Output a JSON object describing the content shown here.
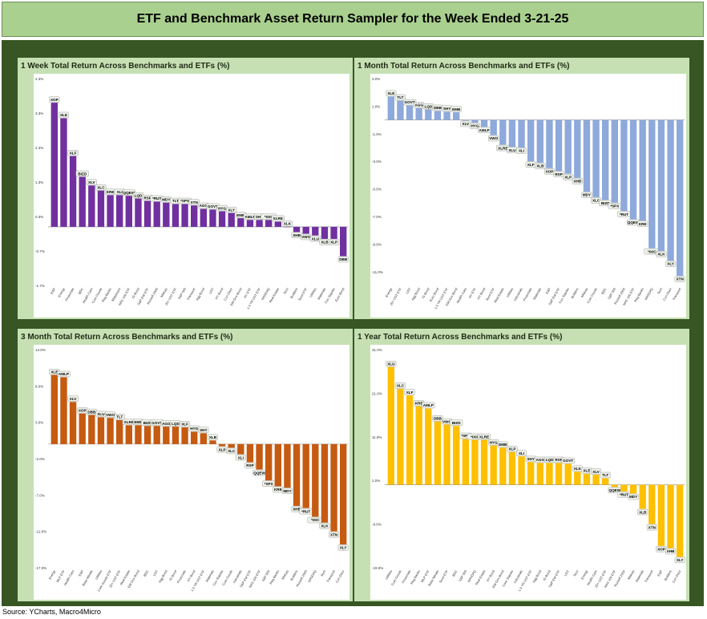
{
  "page": {
    "title": "ETF and Benchmark Asset Return Sampler for the Week Ended 3-21-25",
    "source": "Source: YCharts, Macro4Micro"
  },
  "chart_data": [
    {
      "type": "bar",
      "title": "1 Week Total Return Across Benchmarks and ETFs (%)",
      "color": "#7030a0",
      "ylim": [
        -1.7,
        4.3
      ],
      "yticks": [
        4.3,
        3.3,
        2.3,
        1.3,
        0.3,
        -0.7,
        -1.7
      ],
      "ytick_labels": [
        "4.3%",
        "3.3%",
        "2.3%",
        "1.3%",
        "0.3%",
        "-0.7%",
        "-1.7%"
      ],
      "categories": [
        "E&P",
        "Energy",
        "Financials",
        "BDC",
        "Health Care",
        "Core Goods",
        "Reg Banks",
        "Midstream",
        "NAS 100 ETF",
        "IG Bond",
        "S&P EW ETF",
        "Russell 2000",
        "Midcap",
        "20+ UST ETF",
        "S&P 500",
        "Transport",
        "Agg Bond",
        "UST",
        "HY Bond",
        "Con Discr",
        "EM Gov Bond",
        "HY ETF",
        "1-3 YR UST ETF",
        "NASDAQ",
        "Real Estate",
        "Tech",
        "Builders",
        "Semi ETF",
        "Utilities",
        "Materials",
        "Con Staples",
        "Euro Bond"
      ],
      "labels": [
        "XOP",
        "XLE",
        "XLF",
        "BIZD",
        "XLV",
        "XLC",
        "KRE",
        "XLI",
        "QQEW",
        "LQD",
        "RSP",
        "*RUT",
        "MDY",
        "TLT",
        "*SPX",
        "XTN",
        "AGG",
        "GOVT",
        "HYG",
        "XLY",
        "EMB",
        "AMLP",
        "SHY",
        "*IXIC",
        "XLRE",
        "XLK",
        "XHB",
        "VWO",
        "XLU",
        "XLB",
        "XLP",
        "DBB"
      ],
      "values": [
        3.6,
        3.15,
        2.05,
        1.45,
        1.2,
        1.05,
        0.92,
        0.92,
        0.9,
        0.82,
        0.75,
        0.73,
        0.7,
        0.66,
        0.66,
        0.62,
        0.52,
        0.5,
        0.45,
        0.4,
        0.25,
        0.2,
        0.2,
        0.2,
        0.15,
        0.0,
        -0.15,
        -0.2,
        -0.25,
        -0.35,
        -0.35,
        -0.85
      ]
    },
    {
      "type": "bar",
      "title": "1 Month Total Return Across Benchmarks and ETFs (%)",
      "color": "#8ea9db",
      "ylim": [
        -12.0,
        3.0
      ],
      "yticks": [
        3.0,
        1.0,
        -1.0,
        -3.0,
        -5.0,
        -7.0,
        -9.0,
        -11.0
      ],
      "ytick_labels": [
        "3.0%",
        "1.0%",
        "-1.0%",
        "-3.0%",
        "-5.0%",
        "-7.0%",
        "-9.0%",
        "-11.0%"
      ],
      "categories": [
        "Energy",
        "20+ UST ETF",
        "UST",
        "Agg Bond",
        "IG Bond",
        "Euro Bond",
        "1-3 YR UST ETF",
        "EM Gov Bond",
        "Health Care",
        "HY ETF",
        "HY Bond",
        "Semi ETF",
        "Real Estate",
        "Utilities",
        "Industrials",
        "Financials",
        "Materials",
        "E&P",
        "S&P EW ETF",
        "Con Staples",
        "Builders",
        "Midcap",
        "Core Goods",
        "BDC",
        "S&P 500",
        "Russell 2000",
        "NAS 100 ETF",
        "Reg Banks",
        "NASDAQ",
        "Tech",
        "Con Discr",
        "Transport"
      ],
      "labels": [
        "XLE",
        "TLT",
        "GOVT",
        "AGG",
        "LQD",
        "DBB",
        "SHY",
        "EMB",
        "XLV",
        "HYG",
        "AMLP",
        "VWO",
        "XLRE",
        "XLU",
        "XLI",
        "XLF",
        "XLB",
        "XOP",
        "RSP",
        "XLP",
        "XHB",
        "MDY",
        "XLC",
        "BIZD",
        "*SPX",
        "*RUT",
        "QQEW",
        "KRE",
        "*IXIC",
        "XLK",
        "XLY",
        "XTN"
      ],
      "values": [
        1.7,
        1.4,
        1.05,
        0.85,
        0.75,
        0.65,
        0.6,
        0.55,
        -0.05,
        -0.2,
        -0.5,
        -1.1,
        -1.8,
        -1.95,
        -2.0,
        -3.0,
        -3.1,
        -3.5,
        -3.7,
        -3.9,
        -4.2,
        -5.2,
        -5.6,
        -5.8,
        -6.0,
        -6.6,
        -7.2,
        -7.3,
        -9.3,
        -9.5,
        -10.2,
        -11.3
      ]
    },
    {
      "type": "bar",
      "title": "3 Month Total Return Across Benchmarks and ETFs (%)",
      "color": "#c55a11",
      "ylim": [
        -17.0,
        13.0
      ],
      "yticks": [
        13.0,
        8.0,
        3.0,
        -2.0,
        -7.0,
        -12.0,
        -17.0
      ],
      "ytick_labels": [
        "13.0%",
        "8.0%",
        "3.0%",
        "-2.0%",
        "-7.0%",
        "-12.0%",
        "-17.0%"
      ],
      "categories": [
        "Energy",
        "MLP ETF",
        "Health Care",
        "E&P",
        "Base Metals",
        "Utilities",
        "Core Goods ETF",
        "20+ UST ETF",
        "Real Estate",
        "EM Gov Bond",
        "BDC",
        "UST",
        "Agg Bond",
        "IG Bond",
        "Financials",
        "HY Bond",
        "1-3 YR UST ETF",
        "Materials",
        "Con Staples",
        "Core Goods",
        "Industrials",
        "S&P EW ETF",
        "NAS 100 ETF",
        "S&P 500",
        "Reg Banks",
        "Midcap",
        "Builders",
        "Russell 2000",
        "NASDAQ",
        "Tech",
        "Transport",
        "Con Discr"
      ],
      "labels": [
        "XLE",
        "AMLP",
        "XLV",
        "XOP",
        "DBB",
        "XLU",
        "VWO",
        "TLT",
        "XLRE",
        "EMB",
        "BIZD",
        "GOVT",
        "AGG",
        "LQD",
        "XLF",
        "HYG",
        "SHY",
        "XLB",
        "XLP",
        "XLC",
        "XLI",
        "RSP",
        "QQEW",
        "*SPX",
        "KRE",
        "MDY",
        "XHB",
        "*RUT",
        "*IXIC",
        "XLK",
        "XTN",
        "XLY"
      ],
      "values": [
        9.5,
        9.2,
        5.8,
        4.2,
        4.0,
        3.7,
        3.6,
        3.3,
        2.6,
        2.6,
        2.5,
        2.5,
        2.4,
        2.4,
        2.3,
        1.7,
        1.5,
        0.5,
        -0.3,
        -0.5,
        -1.4,
        -2.5,
        -3.5,
        -5.0,
        -5.8,
        -6.0,
        -8.5,
        -8.8,
        -10.0,
        -10.8,
        -12.0,
        -13.8
      ]
    },
    {
      "type": "bar",
      "title": "1 Year Total Return Across Benchmarks and ETFs (%)",
      "color": "#ffc000",
      "ylim": [
        -19.0,
        31.0
      ],
      "yticks": [
        31.0,
        21.0,
        11.0,
        1.0,
        -9.0,
        -19.0
      ],
      "ytick_labels": [
        "31.0%",
        "21.0%",
        "11.0%",
        "1.0%",
        "-9.0%",
        "-19.0%"
      ],
      "categories": [
        "Utilities",
        "Core Goods",
        "Financials",
        "Reg Banks",
        "MLP ETF",
        "Base Metals",
        "Semi ETF",
        "BDC",
        "S&P 500",
        "NASDAQ",
        "Real Estate",
        "HY Bond",
        "EM Gov Bond",
        "Core Staples",
        "Industrials",
        "1-3 YR UST ETF",
        "Agg Bond",
        "IG Bond",
        "S&P EW ETF",
        "UST",
        "Tech",
        "Energy",
        "Health Care",
        "20+ UST ETF",
        "NAS 100 ETF",
        "Russell 2000",
        "Midcap",
        "Materials",
        "Transport",
        "E&P",
        "Builders",
        "Con Discr"
      ],
      "labels": [
        "XLU",
        "XLC",
        "XLF",
        "KRE",
        "AMLP",
        "DBB",
        "VWO",
        "BIZD",
        "*SPX",
        "*IXIC",
        "XLRE",
        "HYG",
        "EMB",
        "XLP",
        "XLI",
        "SHY",
        "AGG",
        "LQD",
        "RSP",
        "GOVT",
        "XLK",
        "XLE",
        "XLV",
        "TLT",
        "QQEW",
        "*RUT",
        "MDY",
        "XLB",
        "XTN",
        "XOP",
        "XHB",
        "XLY"
      ],
      "values": [
        27.0,
        22.0,
        20.5,
        18.0,
        17.5,
        14.5,
        13.8,
        13.5,
        10.5,
        10.3,
        10.3,
        9.0,
        8.5,
        7.5,
        6.5,
        5.2,
        5.0,
        5.0,
        5.0,
        4.8,
        3.0,
        2.5,
        2.3,
        1.5,
        -0.5,
        -1.5,
        -2.0,
        -5.5,
        -9.0,
        -14.0,
        -14.5,
        -16.5
      ]
    }
  ]
}
